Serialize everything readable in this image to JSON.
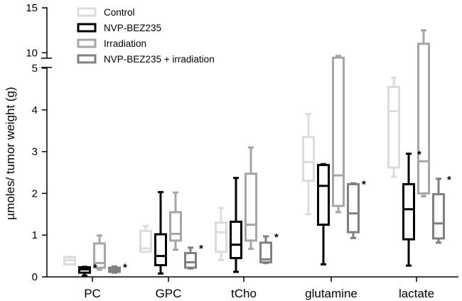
{
  "chart_data": {
    "type": "box",
    "title": "",
    "xlabel": "",
    "ylabel": "µmoles/ tumor weight (g)",
    "y_axis_break": {
      "lower_range": [
        0,
        5
      ],
      "upper_range": [
        9,
        15
      ]
    },
    "y_ticks": [
      "0",
      "1",
      "2",
      "3",
      "4",
      "5",
      "10",
      "15"
    ],
    "categories": [
      "PC",
      "GPC",
      "tCho",
      "glutamine",
      "lactate"
    ],
    "legend": [
      {
        "name": "Control",
        "color": "#dcdcdc"
      },
      {
        "name": "NVP-BEZ235",
        "color": "#000000"
      },
      {
        "name": "Irradiation",
        "color": "#a6a6a6"
      },
      {
        "name": "NVP-BEZ235 + irradiation",
        "color": "#7f7f7f"
      }
    ],
    "series": [
      {
        "name": "Control",
        "boxes": [
          {
            "min": 0.3,
            "q1": 0.3,
            "median": 0.4,
            "q3": 0.47,
            "max": 0.48
          },
          {
            "min": 0.6,
            "q1": 0.6,
            "median": 0.68,
            "q3": 1.1,
            "max": 1.22
          },
          {
            "min": 0.4,
            "q1": 0.6,
            "median": 1.07,
            "q3": 1.3,
            "max": 1.65
          },
          {
            "min": 1.5,
            "q1": 2.3,
            "median": 2.75,
            "q3": 3.35,
            "max": 3.9
          },
          {
            "min": 2.4,
            "q1": 2.62,
            "median": 3.97,
            "q3": 4.55,
            "max": 4.77
          }
        ]
      },
      {
        "name": "NVP-BEZ235",
        "boxes": [
          {
            "min": 0.03,
            "q1": 0.1,
            "median": 0.18,
            "q3": 0.23,
            "max": 0.24
          },
          {
            "min": 0.08,
            "q1": 0.28,
            "median": 0.5,
            "q3": 1.02,
            "max": 2.03
          },
          {
            "min": 0.12,
            "q1": 0.45,
            "median": 0.77,
            "q3": 1.32,
            "max": 2.37
          },
          {
            "min": 0.3,
            "q1": 1.25,
            "median": 2.18,
            "q3": 2.68,
            "max": 2.7
          },
          {
            "min": 0.27,
            "q1": 0.9,
            "median": 1.62,
            "q3": 2.22,
            "max": 2.95
          }
        ]
      },
      {
        "name": "Irradiation",
        "boxes": [
          {
            "min": 0.17,
            "q1": 0.22,
            "median": 0.33,
            "q3": 0.8,
            "max": 0.99
          },
          {
            "min": 0.65,
            "q1": 0.87,
            "median": 1.03,
            "q3": 1.55,
            "max": 2.02
          },
          {
            "min": 0.67,
            "q1": 0.87,
            "median": 1.25,
            "q3": 2.47,
            "max": 3.1
          },
          {
            "min": 1.55,
            "q1": 1.7,
            "median": 2.43,
            "q3": 9.45,
            "max": 9.65
          },
          {
            "min": 1.93,
            "q1": 2.0,
            "median": 2.77,
            "q3": 11.0,
            "max": 12.5
          }
        ]
      },
      {
        "name": "NVP-BEZ235 + irradiation",
        "boxes": [
          {
            "min": 0.1,
            "q1": 0.12,
            "median": 0.17,
            "q3": 0.22,
            "max": 0.25
          },
          {
            "min": 0.2,
            "q1": 0.22,
            "median": 0.35,
            "q3": 0.57,
            "max": 0.7
          },
          {
            "min": 0.33,
            "q1": 0.35,
            "median": 0.42,
            "q3": 0.82,
            "max": 0.97
          },
          {
            "min": 0.93,
            "q1": 1.07,
            "median": 1.52,
            "q3": 2.22,
            "max": 2.24
          },
          {
            "min": 0.82,
            "q1": 0.92,
            "median": 1.28,
            "q3": 1.98,
            "max": 2.35
          }
        ]
      }
    ],
    "significance_marks": [
      {
        "category": "PC",
        "series": "NVP-BEZ235",
        "label": "*"
      },
      {
        "category": "PC",
        "series": "NVP-BEZ235 + irradiation",
        "label": "*"
      },
      {
        "category": "GPC",
        "series": "NVP-BEZ235 + irradiation",
        "label": "*"
      },
      {
        "category": "tCho",
        "series": "NVP-BEZ235 + irradiation",
        "label": "*"
      },
      {
        "category": "glutamine",
        "series": "NVP-BEZ235 + irradiation",
        "label": "*"
      },
      {
        "category": "lactate",
        "series": "NVP-BEZ235",
        "label": "*"
      },
      {
        "category": "lactate",
        "series": "NVP-BEZ235 + irradiation",
        "label": "*"
      }
    ]
  }
}
